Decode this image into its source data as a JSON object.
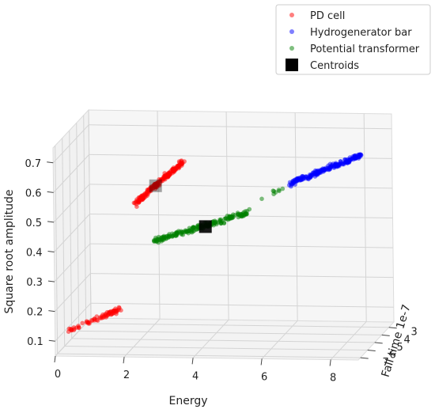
{
  "chart_data": {
    "type": "scatter",
    "projection": "3d",
    "xlabel": "Energy",
    "ylabel": "Fall time 1e-7",
    "zlabel": "Square root amplitude",
    "x_ticks": [
      "0",
      "2",
      "4",
      "6",
      "8"
    ],
    "y_ticks": [
      "3",
      "4",
      "5",
      "6",
      "7"
    ],
    "z_ticks": [
      "0.1",
      "0.2",
      "0.3",
      "0.4",
      "0.5",
      "0.6",
      "0.7"
    ],
    "grid": true,
    "legend_position": "top-right",
    "series": [
      {
        "name": "PD cell",
        "color": "#ff0000",
        "clusters": [
          {
            "count": 70,
            "energy": [
              0.3,
              1.8
            ],
            "fall_time": [
              6.7,
              6.9
            ],
            "amplitude": [
              0.12,
              0.2
            ]
          },
          {
            "count": 180,
            "energy": [
              1.5,
              2.9
            ],
            "fall_time": [
              3.0,
              3.3
            ],
            "amplitude": [
              0.46,
              0.6
            ]
          }
        ]
      },
      {
        "name": "Hydrogenerator bar",
        "color": "#0000ff",
        "clusters": [
          {
            "count": 200,
            "energy": [
              5.9,
              8.0
            ],
            "fall_time": [
              2.4,
              2.8
            ],
            "amplitude": [
              0.52,
              0.62
            ]
          }
        ]
      },
      {
        "name": "Potential transformer",
        "color": "#008000",
        "clusters": [
          {
            "count": 200,
            "energy": [
              2.4,
              5.2
            ],
            "fall_time": [
              4.8,
              5.0
            ],
            "amplitude": [
              0.38,
              0.48
            ]
          },
          {
            "count": 8,
            "energy": [
              5.2,
              5.9
            ],
            "fall_time": [
              3.6,
              3.8
            ],
            "amplitude": [
              0.49,
              0.53
            ]
          }
        ]
      }
    ],
    "centroids": {
      "name": "Centroids",
      "color": "#000000",
      "points": [
        {
          "energy": 2.1,
          "fall_time": 3.15,
          "amplitude": 0.52
        },
        {
          "energy": 3.9,
          "fall_time": 4.9,
          "amplitude": 0.43
        }
      ]
    },
    "legend": {
      "entries": [
        {
          "label": "PD cell",
          "color": "#ff0000",
          "marker": "dot"
        },
        {
          "label": "Hydrogenerator bar",
          "color": "#0000ff",
          "marker": "dot"
        },
        {
          "label": "Potential transformer",
          "color": "#008000",
          "marker": "dot"
        },
        {
          "label": "Centroids",
          "color": "#000000",
          "marker": "square"
        }
      ]
    }
  }
}
